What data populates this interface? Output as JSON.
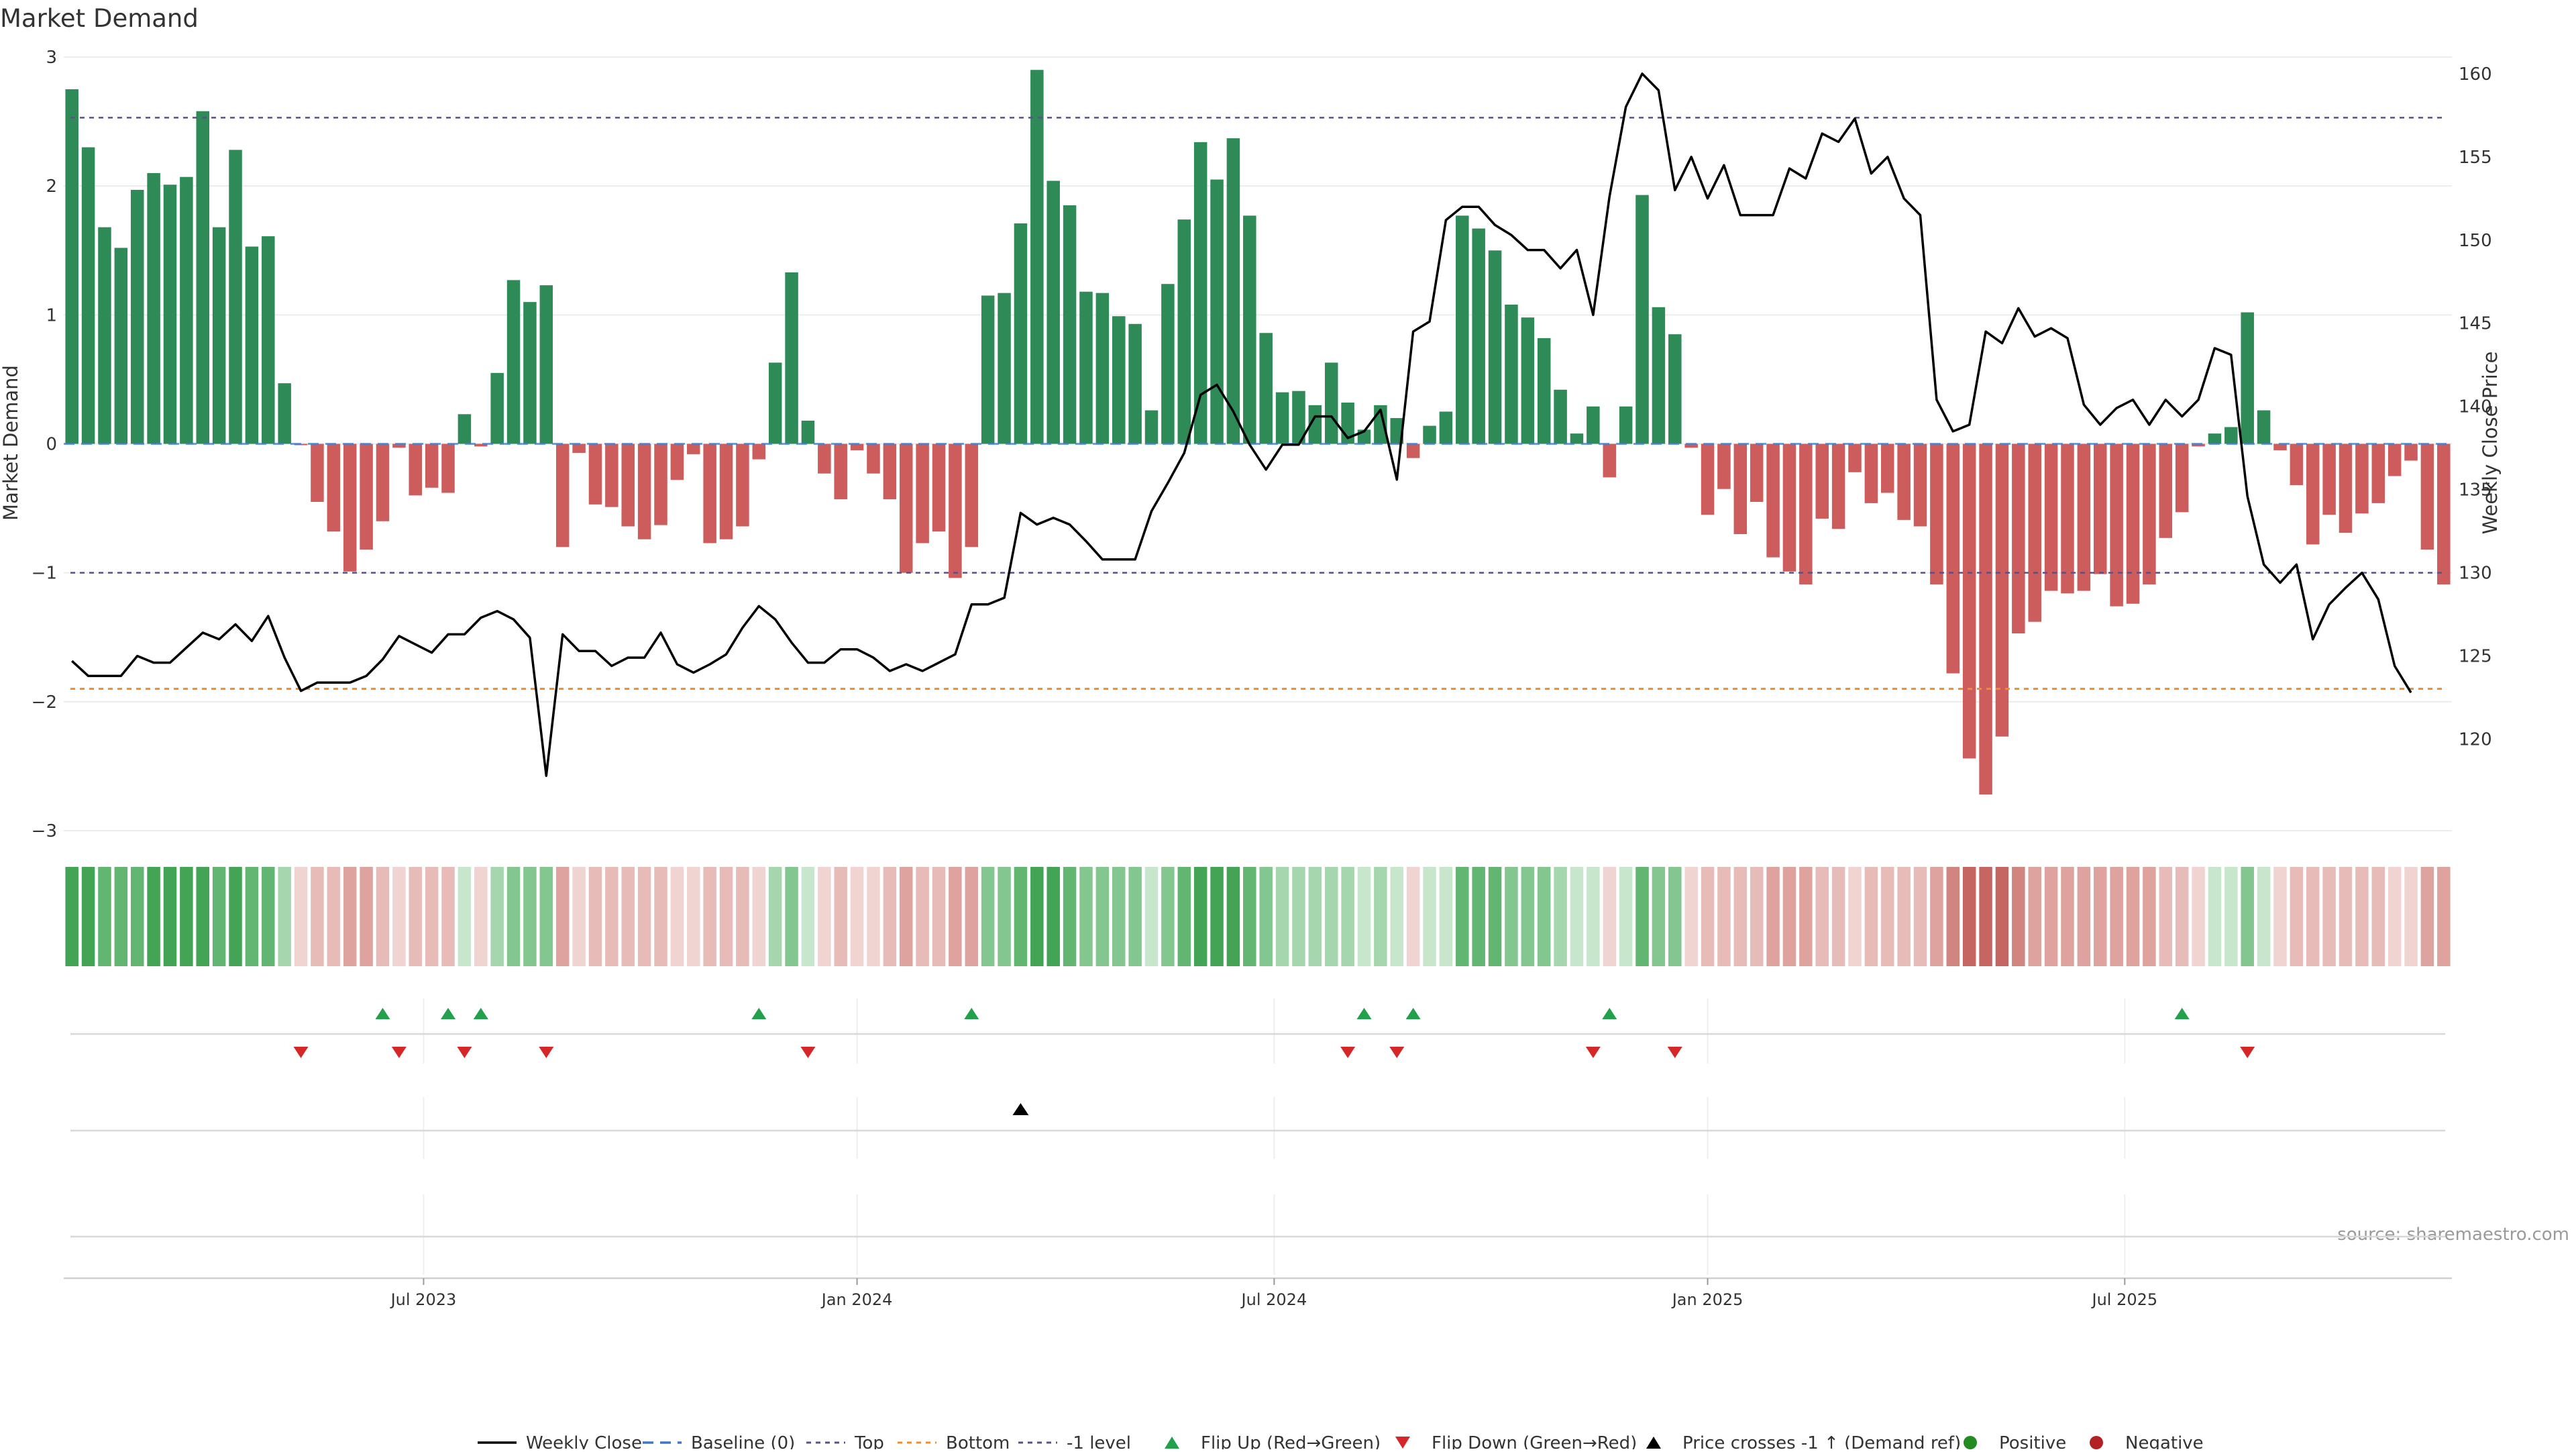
{
  "chart_data": {
    "type": "bar",
    "title": "Market Demand",
    "ylabel_left": "Market Demand",
    "ylabel_right": "Weekly Close Price",
    "source": "source: sharemaestro.com",
    "ylim_left": [
      -3,
      3
    ],
    "yticks_left": [
      "3",
      "2",
      "1",
      "0",
      "−1",
      "−2",
      "−3"
    ],
    "ylim_right": [
      114.5,
      161
    ],
    "yticks_right": [
      160,
      155,
      150,
      145,
      140,
      135,
      130,
      125,
      120
    ],
    "x_ticks": [
      "Jul 2023",
      "Jan 2024",
      "Jul 2024",
      "Jan 2025",
      "Jul 2025"
    ],
    "x_tick_weeks": [
      22,
      48.5,
      74,
      100.5,
      126
    ],
    "reference_lines": {
      "top": 2.53,
      "bottom": -1.9,
      "minus_one": -1.0
    },
    "series": [
      {
        "name": "Market Demand",
        "values": [
          2.75,
          2.3,
          1.68,
          1.52,
          1.97,
          2.1,
          2.01,
          2.07,
          2.58,
          1.68,
          2.28,
          1.53,
          1.61,
          0.47,
          -0.01,
          -0.45,
          -0.68,
          -0.99,
          -0.82,
          -0.6,
          -0.03,
          -0.4,
          -0.34,
          -0.38,
          0.23,
          -0.02,
          0.55,
          1.27,
          1.1,
          1.23,
          -0.8,
          -0.07,
          -0.47,
          -0.49,
          -0.64,
          -0.74,
          -0.63,
          -0.28,
          -0.08,
          -0.77,
          -0.74,
          -0.64,
          -0.12,
          0.63,
          1.33,
          0.18,
          -0.23,
          -0.43,
          -0.05,
          -0.23,
          -0.43,
          -1.0,
          -0.77,
          -0.68,
          -1.04,
          -0.8,
          1.15,
          1.17,
          1.71,
          2.9,
          2.04,
          1.85,
          1.18,
          1.17,
          0.99,
          0.93,
          0.26,
          1.24,
          1.74,
          2.34,
          2.05,
          2.37,
          1.77,
          0.86,
          0.4,
          0.41,
          0.3,
          0.63,
          0.32,
          0.11,
          0.3,
          0.2,
          -0.11,
          0.14,
          0.25,
          1.77,
          1.67,
          1.5,
          1.08,
          0.98,
          0.82,
          0.42,
          0.08,
          0.29,
          -0.26,
          0.29,
          1.93,
          1.06,
          0.85,
          -0.03,
          -0.55,
          -0.35,
          -0.7,
          -0.45,
          -0.88,
          -0.99,
          -1.09,
          -0.58,
          -0.66,
          -0.22,
          -0.46,
          -0.38,
          -0.59,
          -0.64,
          -1.09,
          -1.78,
          -2.44,
          -2.72,
          -2.27,
          -1.47,
          -1.38,
          -1.14,
          -1.16,
          -1.14,
          -1.01,
          -1.26,
          -1.24,
          -1.09,
          -0.73,
          -0.53,
          -0.02,
          0.08,
          0.13,
          1.02,
          0.26,
          -0.05,
          -0.32,
          -0.78,
          -0.55,
          -0.69,
          -0.54,
          -0.46,
          -0.25,
          -0.13,
          -0.82,
          -1.09
        ]
      },
      {
        "name": "Weekly Close",
        "values": [
          124.7,
          123.8,
          123.8,
          123.8,
          125.0,
          124.6,
          124.6,
          125.5,
          126.4,
          126.0,
          126.9,
          125.9,
          127.4,
          124.9,
          122.9,
          123.4,
          123.4,
          123.4,
          123.8,
          124.8,
          126.2,
          125.7,
          125.2,
          126.3,
          126.3,
          127.3,
          127.7,
          127.2,
          126.1,
          117.8,
          126.3,
          125.3,
          125.3,
          124.4,
          124.9,
          124.9,
          126.4,
          124.5,
          124.0,
          124.5,
          125.1,
          126.7,
          128.0,
          127.2,
          125.8,
          124.6,
          124.6,
          125.4,
          125.4,
          124.9,
          124.1,
          124.5,
          124.1,
          124.6,
          125.1,
          128.1,
          128.1,
          128.5,
          133.6,
          132.9,
          133.3,
          132.9,
          131.9,
          130.8,
          130.8,
          130.8,
          133.7,
          135.4,
          137.2,
          140.7,
          141.3,
          139.7,
          137.7,
          136.2,
          137.7,
          137.7,
          139.4,
          139.4,
          138.1,
          138.5,
          139.8,
          135.6,
          144.5,
          145.1,
          151.2,
          152.0,
          152.0,
          150.9,
          150.3,
          149.4,
          149.4,
          148.3,
          149.4,
          145.5,
          152.6,
          158.0,
          160.0,
          159.0,
          153.0,
          155.0,
          152.5,
          154.5,
          151.5,
          151.5,
          151.5,
          154.3,
          153.7,
          156.4,
          155.9,
          157.3,
          154.0,
          155.0,
          152.5,
          151.5,
          140.4,
          138.5,
          138.9,
          144.5,
          143.8,
          145.9,
          144.2,
          144.7,
          144.1,
          140.1,
          138.9,
          139.9,
          140.4,
          138.9,
          140.4,
          139.4,
          140.4,
          143.5,
          143.1,
          134.6,
          130.5,
          129.4,
          130.5,
          126.0,
          128.1,
          129.1,
          130.0,
          128.4,
          124.4,
          122.8
        ]
      }
    ],
    "flip_up_weeks": [
      19,
      23,
      25,
      42,
      55,
      79,
      82,
      94,
      129
    ],
    "flip_down_weeks": [
      14,
      20,
      24,
      29,
      45,
      78,
      81,
      93,
      98,
      133
    ],
    "cross_up_weeks": [
      58
    ],
    "legend": [
      "Weekly Close",
      "Baseline (0)",
      "Top",
      "Bottom",
      "-1 level",
      "Flip Up (Red→Green)",
      "Flip Down (Green→Red)",
      "Price crosses -1 ↑ (Demand ref)",
      "Positive",
      "Negative"
    ],
    "legend_placement": "bottom-center",
    "colors": {
      "positive_bar": "#2e8b57",
      "negative_bar": "#cd5c5c",
      "price_line": "#000000",
      "top_line": "#5b4f8c",
      "bottom_line": "#f08c2a",
      "minus_one_line": "#5b4f8c",
      "baseline": "#3c78c8",
      "flip_up": "#22a04b",
      "flip_down": "#d62728",
      "positive_dot": "#228b22",
      "negative_dot": "#b22222"
    }
  }
}
